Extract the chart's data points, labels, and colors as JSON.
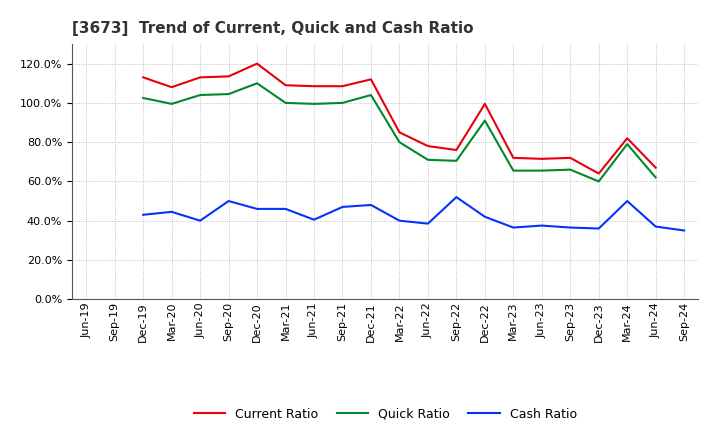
{
  "title": "[3673]  Trend of Current, Quick and Cash Ratio",
  "labels": [
    "Jun-19",
    "Sep-19",
    "Dec-19",
    "Mar-20",
    "Jun-20",
    "Sep-20",
    "Dec-20",
    "Mar-21",
    "Jun-21",
    "Sep-21",
    "Dec-21",
    "Mar-22",
    "Jun-22",
    "Sep-22",
    "Dec-22",
    "Mar-23",
    "Jun-23",
    "Sep-23",
    "Dec-23",
    "Mar-24",
    "Jun-24",
    "Sep-24"
  ],
  "current_ratio": [
    null,
    null,
    113.0,
    108.0,
    113.0,
    113.5,
    120.0,
    109.0,
    108.5,
    108.5,
    112.0,
    85.0,
    78.0,
    76.0,
    99.5,
    72.0,
    71.5,
    72.0,
    64.0,
    82.0,
    67.0,
    null
  ],
  "quick_ratio": [
    null,
    null,
    102.5,
    99.5,
    104.0,
    104.5,
    110.0,
    100.0,
    99.5,
    100.0,
    104.0,
    80.0,
    71.0,
    70.5,
    91.0,
    65.5,
    65.5,
    66.0,
    60.0,
    79.0,
    62.0,
    null
  ],
  "cash_ratio": [
    null,
    null,
    43.0,
    44.5,
    40.0,
    50.0,
    46.0,
    46.0,
    40.5,
    47.0,
    48.0,
    40.0,
    38.5,
    52.0,
    42.0,
    36.5,
    37.5,
    36.5,
    36.0,
    50.0,
    37.0,
    35.0
  ],
  "current_color": "#e8000d",
  "quick_color": "#00882b",
  "cash_color": "#0432ff",
  "ylim": [
    0,
    130
  ],
  "yticks": [
    0,
    20,
    40,
    60,
    80,
    100,
    120
  ],
  "background_color": "#ffffff",
  "grid_color": "#b0b0b0",
  "title_fontsize": 11,
  "legend_fontsize": 9,
  "axis_fontsize": 8
}
